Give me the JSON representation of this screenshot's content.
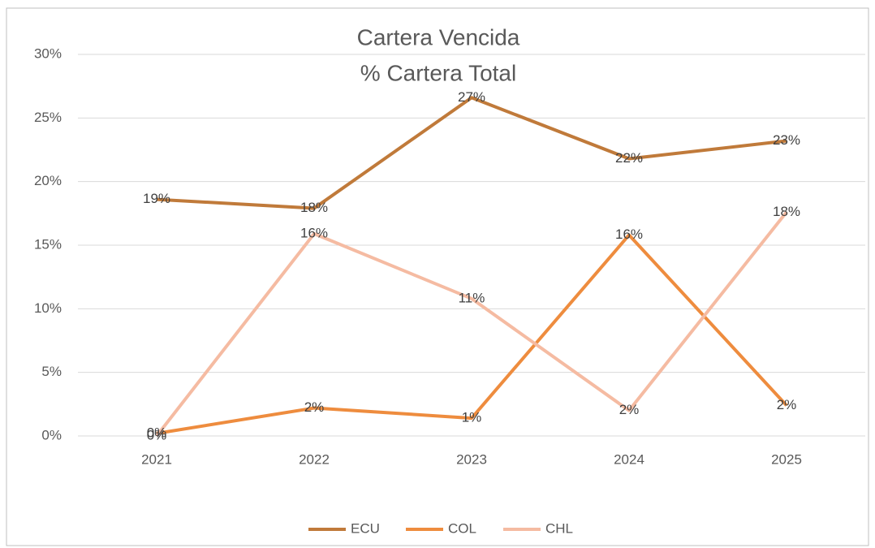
{
  "chart_data": {
    "type": "line",
    "title": [
      "Cartera Vencida",
      "% Cartera Total"
    ],
    "categories": [
      "2021",
      "2022",
      "2023",
      "2024",
      "2025"
    ],
    "series": [
      {
        "name": "ECU",
        "color": "#c07a3a",
        "values": [
          18.6,
          17.9,
          26.6,
          21.8,
          23.2
        ],
        "value_labels": [
          "19%",
          "18%",
          "27%",
          "22%",
          "23%"
        ]
      },
      {
        "name": "COL",
        "color": "#ee8c3e",
        "values": [
          0.2,
          2.2,
          1.4,
          15.8,
          2.4
        ],
        "value_labels": [
          "0%",
          "2%",
          "1%",
          "16%",
          "2%"
        ]
      },
      {
        "name": "CHL",
        "color": "#f5bba2",
        "values": [
          0,
          15.9,
          10.8,
          2.0,
          17.6
        ],
        "value_labels": [
          "0%",
          "16%",
          "11%",
          "2%",
          "18%"
        ]
      }
    ],
    "ylim": [
      0,
      30
    ],
    "yticks": [
      {
        "value": 0,
        "label": "0%"
      },
      {
        "value": 5,
        "label": "5%"
      },
      {
        "value": 10,
        "label": "10%"
      },
      {
        "value": 15,
        "label": "15%"
      },
      {
        "value": 20,
        "label": "20%"
      },
      {
        "value": 25,
        "label": "25%"
      },
      {
        "value": 30,
        "label": "30%"
      }
    ],
    "grid": true,
    "legend": "bottom"
  }
}
